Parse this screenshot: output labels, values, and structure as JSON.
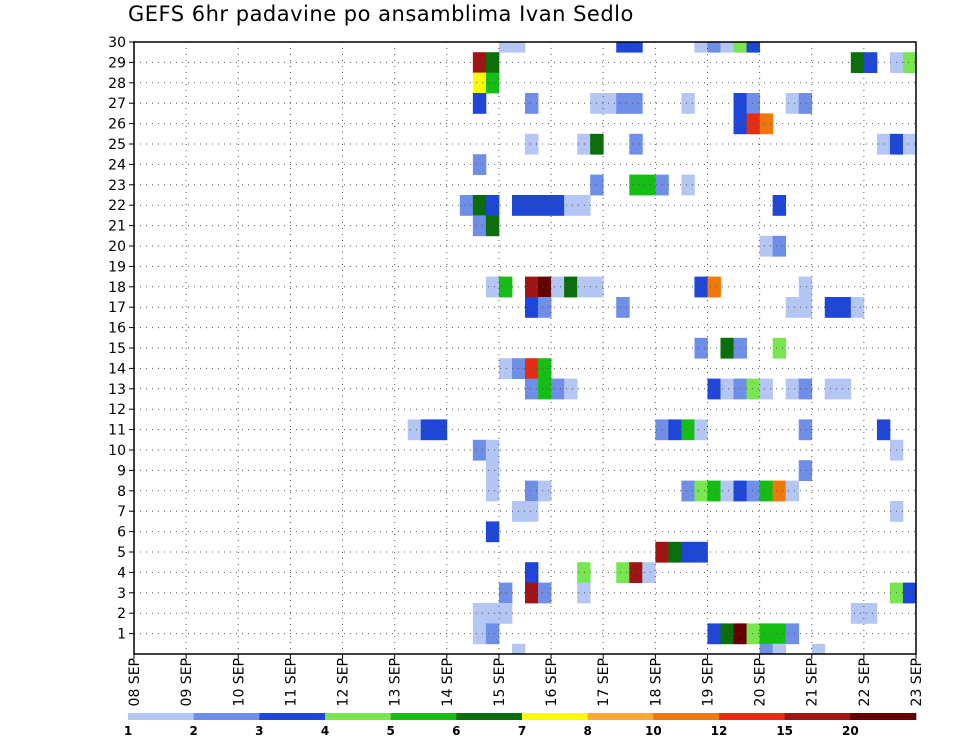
{
  "chart_data": {
    "type": "heatmap",
    "title": "GEFS 6hr padavine po ansamblima Ivan Sedlo",
    "x_ticks": [
      "08 SEP",
      "09 SEP",
      "10 SEP",
      "11 SEP",
      "12 SEP",
      "13 SEP",
      "14 SEP",
      "15 SEP",
      "16 SEP",
      "17 SEP",
      "18 SEP",
      "19 SEP",
      "20 SEP",
      "21 SEP",
      "22 SEP",
      "23 SEP"
    ],
    "y_ticks": [
      "1",
      "2",
      "3",
      "4",
      "5",
      "6",
      "7",
      "8",
      "9",
      "10",
      "11",
      "12",
      "13",
      "14",
      "15",
      "16",
      "17",
      "18",
      "19",
      "20",
      "21",
      "22",
      "23",
      "24",
      "25",
      "26",
      "27",
      "28",
      "29",
      "30"
    ],
    "x_range_days": [
      0,
      15
    ],
    "y_range": [
      0,
      30
    ],
    "grid": true,
    "colorbar": {
      "labels": [
        "1",
        "2",
        "3",
        "4",
        "5",
        "6",
        "7",
        "8",
        "10",
        "12",
        "15",
        "20"
      ],
      "colors": [
        "#b4c6f4",
        "#6e8ee8",
        "#1e46d8",
        "#78e650",
        "#14be14",
        "#0a6e0a",
        "#fafa0a",
        "#faaa32",
        "#f0780a",
        "#e62d14",
        "#a01414",
        "#640000"
      ]
    },
    "cell_width_days": 0.25,
    "cells": [
      {
        "member": 30,
        "day": 7.0,
        "level": 1
      },
      {
        "member": 30,
        "day": 7.25,
        "level": 1
      },
      {
        "member": 30,
        "day": 9.25,
        "level": 3
      },
      {
        "member": 30,
        "day": 9.5,
        "level": 3
      },
      {
        "member": 30,
        "day": 10.75,
        "level": 1
      },
      {
        "member": 30,
        "day": 11.0,
        "level": 2
      },
      {
        "member": 30,
        "day": 11.25,
        "level": 1
      },
      {
        "member": 30,
        "day": 11.5,
        "level": 4
      },
      {
        "member": 30,
        "day": 11.75,
        "level": 3
      },
      {
        "member": 29,
        "day": 6.5,
        "level": 11
      },
      {
        "member": 29,
        "day": 6.75,
        "level": 6
      },
      {
        "member": 29,
        "day": 13.75,
        "level": 6
      },
      {
        "member": 29,
        "day": 14.0,
        "level": 3
      },
      {
        "member": 29,
        "day": 14.5,
        "level": 1
      },
      {
        "member": 29,
        "day": 14.75,
        "level": 4
      },
      {
        "member": 28,
        "day": 6.5,
        "level": 7
      },
      {
        "member": 28,
        "day": 6.75,
        "level": 5
      },
      {
        "member": 27,
        "day": 6.5,
        "level": 3
      },
      {
        "member": 27,
        "day": 7.5,
        "level": 2
      },
      {
        "member": 27,
        "day": 8.75,
        "level": 1
      },
      {
        "member": 27,
        "day": 9.0,
        "level": 1
      },
      {
        "member": 27,
        "day": 9.25,
        "level": 2
      },
      {
        "member": 27,
        "day": 9.5,
        "level": 2
      },
      {
        "member": 27,
        "day": 10.5,
        "level": 1
      },
      {
        "member": 27,
        "day": 11.5,
        "level": 3
      },
      {
        "member": 27,
        "day": 11.75,
        "level": 2
      },
      {
        "member": 27,
        "day": 12.5,
        "level": 1
      },
      {
        "member": 27,
        "day": 12.75,
        "level": 2
      },
      {
        "member": 26,
        "day": 11.5,
        "level": 3
      },
      {
        "member": 26,
        "day": 11.75,
        "level": 10
      },
      {
        "member": 26,
        "day": 12.0,
        "level": 9
      },
      {
        "member": 25,
        "day": 7.5,
        "level": 1
      },
      {
        "member": 25,
        "day": 8.5,
        "level": 1
      },
      {
        "member": 25,
        "day": 8.75,
        "level": 6
      },
      {
        "member": 25,
        "day": 9.5,
        "level": 2
      },
      {
        "member": 25,
        "day": 14.25,
        "level": 1
      },
      {
        "member": 25,
        "day": 14.5,
        "level": 3
      },
      {
        "member": 25,
        "day": 14.75,
        "level": 1
      },
      {
        "member": 24,
        "day": 6.5,
        "level": 2
      },
      {
        "member": 23,
        "day": 8.75,
        "level": 2
      },
      {
        "member": 23,
        "day": 9.5,
        "level": 5
      },
      {
        "member": 23,
        "day": 9.75,
        "level": 5
      },
      {
        "member": 23,
        "day": 10.0,
        "level": 2
      },
      {
        "member": 23,
        "day": 10.5,
        "level": 1
      },
      {
        "member": 22,
        "day": 6.25,
        "level": 2
      },
      {
        "member": 22,
        "day": 6.5,
        "level": 6
      },
      {
        "member": 22,
        "day": 6.75,
        "level": 3
      },
      {
        "member": 22,
        "day": 7.25,
        "level": 3
      },
      {
        "member": 22,
        "day": 7.5,
        "level": 3
      },
      {
        "member": 22,
        "day": 7.75,
        "level": 3
      },
      {
        "member": 22,
        "day": 8.0,
        "level": 3
      },
      {
        "member": 22,
        "day": 8.25,
        "level": 1
      },
      {
        "member": 22,
        "day": 8.5,
        "level": 1
      },
      {
        "member": 22,
        "day": 12.25,
        "level": 3
      },
      {
        "member": 21,
        "day": 6.5,
        "level": 2
      },
      {
        "member": 21,
        "day": 6.75,
        "level": 6
      },
      {
        "member": 20,
        "day": 12.0,
        "level": 1
      },
      {
        "member": 20,
        "day": 12.25,
        "level": 2
      },
      {
        "member": 18,
        "day": 6.75,
        "level": 1
      },
      {
        "member": 18,
        "day": 7.0,
        "level": 5
      },
      {
        "member": 18,
        "day": 7.5,
        "level": 11
      },
      {
        "member": 18,
        "day": 7.75,
        "level": 12
      },
      {
        "member": 18,
        "day": 8.0,
        "level": 1
      },
      {
        "member": 18,
        "day": 8.25,
        "level": 6
      },
      {
        "member": 18,
        "day": 8.5,
        "level": 1
      },
      {
        "member": 18,
        "day": 8.75,
        "level": 1
      },
      {
        "member": 18,
        "day": 10.75,
        "level": 3
      },
      {
        "member": 18,
        "day": 11.0,
        "level": 9
      },
      {
        "member": 18,
        "day": 12.75,
        "level": 1
      },
      {
        "member": 17,
        "day": 7.5,
        "level": 3
      },
      {
        "member": 17,
        "day": 7.75,
        "level": 2
      },
      {
        "member": 17,
        "day": 9.25,
        "level": 2
      },
      {
        "member": 17,
        "day": 12.5,
        "level": 1
      },
      {
        "member": 17,
        "day": 12.75,
        "level": 1
      },
      {
        "member": 17,
        "day": 13.25,
        "level": 3
      },
      {
        "member": 17,
        "day": 13.5,
        "level": 3
      },
      {
        "member": 17,
        "day": 13.75,
        "level": 1
      },
      {
        "member": 15,
        "day": 10.75,
        "level": 2
      },
      {
        "member": 15,
        "day": 11.25,
        "level": 6
      },
      {
        "member": 15,
        "day": 11.5,
        "level": 2
      },
      {
        "member": 15,
        "day": 12.25,
        "level": 4
      },
      {
        "member": 14,
        "day": 7.0,
        "level": 1
      },
      {
        "member": 14,
        "day": 7.25,
        "level": 2
      },
      {
        "member": 14,
        "day": 7.5,
        "level": 10
      },
      {
        "member": 14,
        "day": 7.75,
        "level": 5
      },
      {
        "member": 13,
        "day": 7.5,
        "level": 2
      },
      {
        "member": 13,
        "day": 7.75,
        "level": 5
      },
      {
        "member": 13,
        "day": 8.0,
        "level": 2
      },
      {
        "member": 13,
        "day": 8.25,
        "level": 1
      },
      {
        "member": 13,
        "day": 11.0,
        "level": 3
      },
      {
        "member": 13,
        "day": 11.25,
        "level": 1
      },
      {
        "member": 13,
        "day": 11.5,
        "level": 2
      },
      {
        "member": 13,
        "day": 11.75,
        "level": 4
      },
      {
        "member": 13,
        "day": 12.0,
        "level": 1
      },
      {
        "member": 13,
        "day": 12.5,
        "level": 1
      },
      {
        "member": 13,
        "day": 12.75,
        "level": 2
      },
      {
        "member": 13,
        "day": 13.25,
        "level": 1
      },
      {
        "member": 13,
        "day": 13.5,
        "level": 1
      },
      {
        "member": 11,
        "day": 5.25,
        "level": 1
      },
      {
        "member": 11,
        "day": 5.5,
        "level": 3
      },
      {
        "member": 11,
        "day": 5.75,
        "level": 3
      },
      {
        "member": 11,
        "day": 10.0,
        "level": 2
      },
      {
        "member": 11,
        "day": 10.25,
        "level": 3
      },
      {
        "member": 11,
        "day": 10.5,
        "level": 5
      },
      {
        "member": 11,
        "day": 10.75,
        "level": 1
      },
      {
        "member": 11,
        "day": 12.75,
        "level": 2
      },
      {
        "member": 11,
        "day": 14.25,
        "level": 3
      },
      {
        "member": 10,
        "day": 6.5,
        "level": 2
      },
      {
        "member": 10,
        "day": 6.75,
        "level": 1
      },
      {
        "member": 10,
        "day": 14.5,
        "level": 1
      },
      {
        "member": 9,
        "day": 6.75,
        "level": 1
      },
      {
        "member": 9,
        "day": 12.75,
        "level": 2
      },
      {
        "member": 8,
        "day": 6.75,
        "level": 1
      },
      {
        "member": 8,
        "day": 7.5,
        "level": 2
      },
      {
        "member": 8,
        "day": 7.75,
        "level": 1
      },
      {
        "member": 8,
        "day": 10.5,
        "level": 2
      },
      {
        "member": 8,
        "day": 10.75,
        "level": 4
      },
      {
        "member": 8,
        "day": 11.0,
        "level": 5
      },
      {
        "member": 8,
        "day": 11.25,
        "level": 1
      },
      {
        "member": 8,
        "day": 11.5,
        "level": 3
      },
      {
        "member": 8,
        "day": 11.75,
        "level": 2
      },
      {
        "member": 8,
        "day": 12.0,
        "level": 5
      },
      {
        "member": 8,
        "day": 12.25,
        "level": 9
      },
      {
        "member": 8,
        "day": 12.5,
        "level": 1
      },
      {
        "member": 7,
        "day": 7.25,
        "level": 1
      },
      {
        "member": 7,
        "day": 7.5,
        "level": 1
      },
      {
        "member": 7,
        "day": 14.5,
        "level": 1
      },
      {
        "member": 6,
        "day": 6.75,
        "level": 3
      },
      {
        "member": 5,
        "day": 10.0,
        "level": 11
      },
      {
        "member": 5,
        "day": 10.25,
        "level": 6
      },
      {
        "member": 5,
        "day": 10.5,
        "level": 3
      },
      {
        "member": 5,
        "day": 10.75,
        "level": 3
      },
      {
        "member": 4,
        "day": 7.5,
        "level": 3
      },
      {
        "member": 4,
        "day": 8.5,
        "level": 4
      },
      {
        "member": 4,
        "day": 9.25,
        "level": 4
      },
      {
        "member": 4,
        "day": 9.5,
        "level": 11
      },
      {
        "member": 4,
        "day": 9.75,
        "level": 1
      },
      {
        "member": 3,
        "day": 7.0,
        "level": 2
      },
      {
        "member": 3,
        "day": 7.5,
        "level": 11
      },
      {
        "member": 3,
        "day": 7.75,
        "level": 2
      },
      {
        "member": 3,
        "day": 8.5,
        "level": 1
      },
      {
        "member": 3,
        "day": 14.5,
        "level": 4
      },
      {
        "member": 3,
        "day": 14.75,
        "level": 3
      },
      {
        "member": 2,
        "day": 6.5,
        "level": 1
      },
      {
        "member": 2,
        "day": 6.75,
        "level": 1
      },
      {
        "member": 2,
        "day": 7.0,
        "level": 1
      },
      {
        "member": 2,
        "day": 13.75,
        "level": 1
      },
      {
        "member": 2,
        "day": 14.0,
        "level": 1
      },
      {
        "member": 1,
        "day": 6.5,
        "level": 1
      },
      {
        "member": 1,
        "day": 6.75,
        "level": 2
      },
      {
        "member": 1,
        "day": 11.0,
        "level": 3
      },
      {
        "member": 1,
        "day": 11.25,
        "level": 6
      },
      {
        "member": 1,
        "day": 11.5,
        "level": 12
      },
      {
        "member": 1,
        "day": 11.75,
        "level": 4
      },
      {
        "member": 1,
        "day": 12.0,
        "level": 5
      },
      {
        "member": 1,
        "day": 12.25,
        "level": 5
      },
      {
        "member": 1,
        "day": 12.5,
        "level": 2
      },
      {
        "member": 0,
        "day": 7.25,
        "level": 1
      },
      {
        "member": 0,
        "day": 12.0,
        "level": 2
      },
      {
        "member": 0,
        "day": 12.25,
        "level": 1
      },
      {
        "member": 0,
        "day": 13.0,
        "level": 1
      }
    ]
  }
}
